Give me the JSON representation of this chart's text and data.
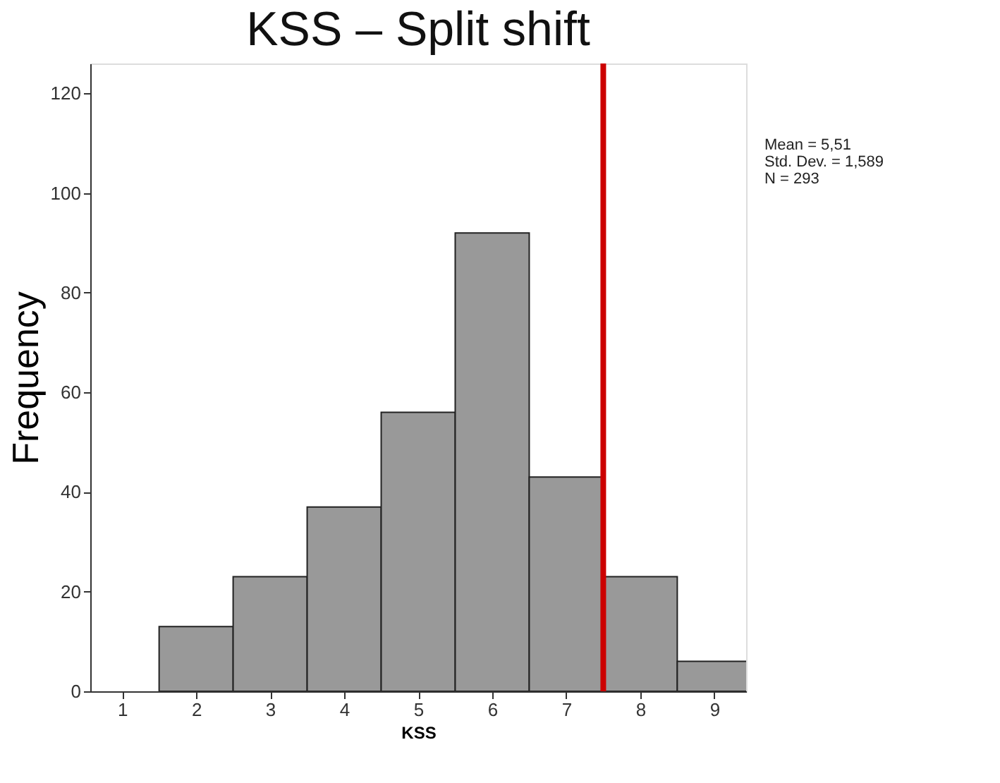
{
  "chart_data": {
    "type": "histogram",
    "title": "KSS – Split shift",
    "xlabel": "KSS",
    "ylabel": "Frequency",
    "bins": [
      0.5,
      1.5,
      2.5,
      3.5,
      4.5,
      5.5,
      6.5,
      7.5,
      8.5,
      9.5
    ],
    "values": [
      0,
      13,
      23,
      37,
      56,
      92,
      43,
      23,
      6
    ],
    "color": "#999999",
    "xlim": [
      0.57,
      9.43
    ],
    "xticks": [
      1,
      2,
      3,
      4,
      5,
      6,
      7,
      8,
      9
    ],
    "ylim": [
      0,
      126
    ],
    "yticks": [
      0,
      20,
      40,
      60,
      80,
      100,
      120
    ],
    "grid": false,
    "ref_lines": [
      {
        "axis": "x",
        "value": 7.5,
        "color": "#cc0000"
      }
    ],
    "annotations": [
      "Mean = 5,51",
      "Std. Dev. = 1,589",
      "N = 293"
    ]
  }
}
